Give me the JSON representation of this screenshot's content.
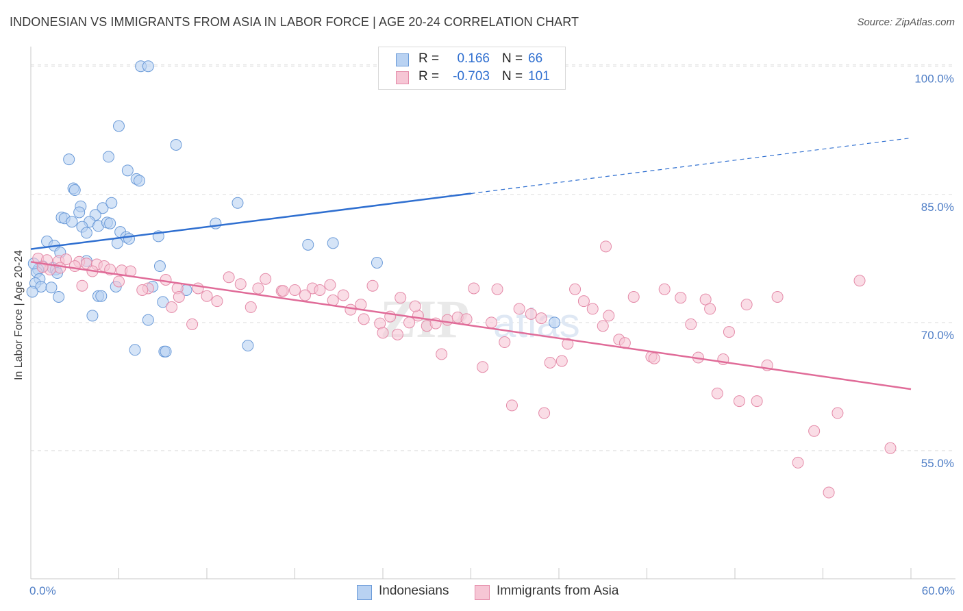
{
  "header": {
    "title": "INDONESIAN VS IMMIGRANTS FROM ASIA IN LABOR FORCE | AGE 20-24 CORRELATION CHART",
    "source": "Source: ZipAtlas.com"
  },
  "legend": {
    "series": [
      {
        "r_label": "R =",
        "r_value": "0.166",
        "n_label": "N =",
        "n_value": "66"
      },
      {
        "r_label": "R =",
        "r_value": "-0.703",
        "n_label": "N =",
        "n_value": "101"
      }
    ]
  },
  "bottom_legend": {
    "items": [
      "Indonesians",
      "Immigrants from Asia"
    ]
  },
  "colors": {
    "blue_fill": "#b9d2f2",
    "blue_stroke": "#6a9ad8",
    "blue_line": "#2f6fd0",
    "pink_fill": "#f6c6d5",
    "pink_stroke": "#e48aa8",
    "pink_line": "#e06b98",
    "tick_label": "#4f7ec6",
    "grid": "#dddddd"
  },
  "chart_data": {
    "type": "scatter",
    "title": "INDONESIAN VS IMMIGRANTS FROM ASIA IN LABOR FORCE | AGE 20-24 CORRELATION CHART",
    "xlabel": "",
    "ylabel": "In Labor Force | Age 20-24",
    "xlim": [
      0,
      60
    ],
    "ylim": [
      40,
      101.5
    ],
    "x_tick_labels": [
      "0.0%",
      "60.0%"
    ],
    "y_ticks": [
      55,
      70,
      85,
      100
    ],
    "y_tick_labels": [
      "55.0%",
      "70.0%",
      "85.0%",
      "100.0%"
    ],
    "grid": true,
    "legend_position": "top-center",
    "watermark": "ZIPatlas",
    "series": [
      {
        "name": "Indonesians",
        "r": 0.166,
        "n": 66,
        "trend": {
          "x": [
            0,
            60
          ],
          "y": [
            78.6,
            91.6
          ],
          "solid_until_x": 30
        },
        "points": [
          [
            7.5,
            100.0
          ],
          [
            8.0,
            100.0
          ],
          [
            6.0,
            93.0
          ],
          [
            9.9,
            90.8
          ],
          [
            2.6,
            89.1
          ],
          [
            5.3,
            89.4
          ],
          [
            6.6,
            87.8
          ],
          [
            7.2,
            86.8
          ],
          [
            7.4,
            86.6
          ],
          [
            2.9,
            85.7
          ],
          [
            3.0,
            85.5
          ],
          [
            14.1,
            84.0
          ],
          [
            3.4,
            83.6
          ],
          [
            4.9,
            83.4
          ],
          [
            5.5,
            84.0
          ],
          [
            3.3,
            82.9
          ],
          [
            4.4,
            82.6
          ],
          [
            2.1,
            82.3
          ],
          [
            2.3,
            82.2
          ],
          [
            2.8,
            81.8
          ],
          [
            4.0,
            81.8
          ],
          [
            4.6,
            81.3
          ],
          [
            5.2,
            81.7
          ],
          [
            5.4,
            81.6
          ],
          [
            12.6,
            81.6
          ],
          [
            3.5,
            81.2
          ],
          [
            3.8,
            80.5
          ],
          [
            6.1,
            80.6
          ],
          [
            6.5,
            80.0
          ],
          [
            6.7,
            79.8
          ],
          [
            8.7,
            80.1
          ],
          [
            5.9,
            79.3
          ],
          [
            1.1,
            79.5
          ],
          [
            1.6,
            79.0
          ],
          [
            2.0,
            78.2
          ],
          [
            18.9,
            79.1
          ],
          [
            20.6,
            79.3
          ],
          [
            23.6,
            77.0
          ],
          [
            3.8,
            77.2
          ],
          [
            0.8,
            76.6
          ],
          [
            8.8,
            76.6
          ],
          [
            0.5,
            76.2
          ],
          [
            1.5,
            76.4
          ],
          [
            1.7,
            76.2
          ],
          [
            0.4,
            75.9
          ],
          [
            1.8,
            75.8
          ],
          [
            0.6,
            75.1
          ],
          [
            0.3,
            74.6
          ],
          [
            0.7,
            74.2
          ],
          [
            1.4,
            74.1
          ],
          [
            5.8,
            74.2
          ],
          [
            8.3,
            74.2
          ],
          [
            1.9,
            73.0
          ],
          [
            4.6,
            73.1
          ],
          [
            4.8,
            73.1
          ],
          [
            9.0,
            72.4
          ],
          [
            0.1,
            73.6
          ],
          [
            10.6,
            73.8
          ],
          [
            4.2,
            70.8
          ],
          [
            8.0,
            70.3
          ],
          [
            35.7,
            70.0
          ],
          [
            14.8,
            67.3
          ],
          [
            7.1,
            66.8
          ],
          [
            9.1,
            66.6
          ],
          [
            9.2,
            66.6
          ],
          [
            0.2,
            76.9
          ]
        ]
      },
      {
        "name": "Immigrants from Asia",
        "r": -0.703,
        "n": 101,
        "trend": {
          "x": [
            0,
            60
          ],
          "y": [
            77.1,
            62.2
          ]
        },
        "points": [
          [
            0.5,
            77.5
          ],
          [
            1.1,
            77.3
          ],
          [
            1.9,
            77.2
          ],
          [
            2.4,
            77.4
          ],
          [
            3.3,
            77.1
          ],
          [
            3.8,
            76.9
          ],
          [
            4.5,
            76.8
          ],
          [
            5.0,
            76.6
          ],
          [
            3.0,
            76.6
          ],
          [
            2.0,
            76.4
          ],
          [
            1.3,
            76.2
          ],
          [
            0.8,
            76.5
          ],
          [
            4.2,
            76.0
          ],
          [
            5.4,
            76.2
          ],
          [
            6.2,
            76.1
          ],
          [
            6.8,
            76.0
          ],
          [
            9.2,
            75.0
          ],
          [
            10.0,
            74.0
          ],
          [
            11.4,
            74.0
          ],
          [
            12.0,
            73.1
          ],
          [
            13.5,
            75.3
          ],
          [
            14.3,
            74.5
          ],
          [
            15.5,
            74.0
          ],
          [
            16.0,
            75.1
          ],
          [
            17.1,
            73.7
          ],
          [
            18.0,
            73.8
          ],
          [
            19.2,
            74.0
          ],
          [
            19.7,
            73.8
          ],
          [
            20.6,
            72.6
          ],
          [
            21.3,
            73.2
          ],
          [
            21.8,
            71.5
          ],
          [
            22.5,
            72.1
          ],
          [
            23.3,
            74.3
          ],
          [
            23.8,
            69.9
          ],
          [
            24.5,
            70.7
          ],
          [
            25.2,
            72.9
          ],
          [
            25.8,
            70.0
          ],
          [
            26.4,
            70.8
          ],
          [
            27.0,
            69.6
          ],
          [
            27.6,
            69.9
          ],
          [
            28.4,
            70.3
          ],
          [
            29.1,
            70.6
          ],
          [
            29.7,
            70.4
          ],
          [
            30.2,
            74.0
          ],
          [
            31.4,
            70.0
          ],
          [
            31.8,
            73.9
          ],
          [
            32.3,
            67.7
          ],
          [
            33.3,
            71.6
          ],
          [
            34.1,
            71.0
          ],
          [
            34.8,
            70.5
          ],
          [
            35.4,
            65.3
          ],
          [
            36.2,
            65.5
          ],
          [
            36.6,
            67.5
          ],
          [
            37.1,
            73.9
          ],
          [
            37.7,
            72.5
          ],
          [
            38.3,
            71.6
          ],
          [
            39.0,
            69.6
          ],
          [
            39.4,
            70.8
          ],
          [
            40.1,
            68.0
          ],
          [
            40.5,
            67.6
          ],
          [
            41.1,
            73.0
          ],
          [
            42.3,
            66.0
          ],
          [
            42.5,
            65.8
          ],
          [
            43.2,
            73.9
          ],
          [
            44.3,
            72.9
          ],
          [
            45.0,
            69.8
          ],
          [
            45.5,
            65.9
          ],
          [
            46.0,
            72.7
          ],
          [
            46.3,
            71.6
          ],
          [
            46.8,
            61.7
          ],
          [
            47.2,
            65.7
          ],
          [
            47.6,
            68.9
          ],
          [
            48.3,
            60.8
          ],
          [
            48.8,
            72.1
          ],
          [
            49.5,
            60.8
          ],
          [
            50.2,
            65.0
          ],
          [
            50.9,
            73.0
          ],
          [
            52.3,
            53.6
          ],
          [
            53.4,
            57.3
          ],
          [
            54.4,
            50.1
          ],
          [
            55.0,
            59.4
          ],
          [
            56.5,
            74.9
          ],
          [
            58.6,
            55.3
          ],
          [
            39.2,
            78.9
          ],
          [
            8.0,
            74.0
          ],
          [
            10.1,
            73.0
          ],
          [
            12.7,
            72.5
          ],
          [
            15.0,
            71.8
          ],
          [
            17.2,
            73.7
          ],
          [
            18.7,
            73.2
          ],
          [
            20.4,
            74.4
          ],
          [
            22.7,
            70.4
          ],
          [
            24.0,
            68.8
          ],
          [
            25.0,
            68.6
          ],
          [
            28.0,
            66.3
          ],
          [
            30.8,
            64.8
          ],
          [
            32.8,
            60.3
          ],
          [
            35.0,
            59.4
          ],
          [
            6.0,
            74.8
          ],
          [
            7.6,
            73.8
          ],
          [
            11.0,
            69.8
          ],
          [
            3.5,
            74.3
          ],
          [
            9.6,
            71.8
          ],
          [
            26.2,
            71.9
          ]
        ]
      }
    ]
  }
}
